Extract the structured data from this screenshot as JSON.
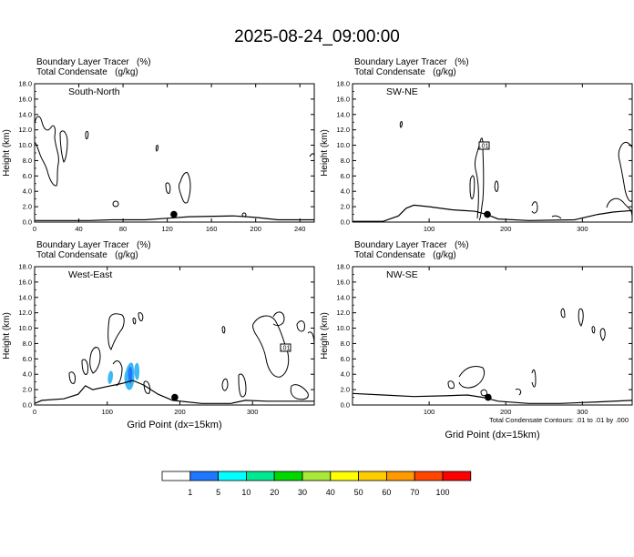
{
  "title": "2025-08-24_09:00:00",
  "field1_label": "Boundary Layer Tracer   (%)",
  "field2_label": "Total Condensate   (g/kg)",
  "ylabel": "Height (km)",
  "xlabel": "Grid Point (dx=15km)",
  "footnote": "Total Condensate Contours: .01 to .01 by .000",
  "contour_label": ".01",
  "colors": {
    "tracer_light": "#3db8f5",
    "tracer_dark": "#1e78ff",
    "terrain": "#000000"
  },
  "chart_data": [
    {
      "type": "heatmap",
      "panel": "South-North",
      "ylim": [
        0,
        18
      ],
      "xlim": [
        0,
        253
      ],
      "yticks": [
        "0.0",
        "2.0",
        "4.0",
        "6.0",
        "8.0",
        "10.0",
        "12.0",
        "14.0",
        "16.0",
        "18.0"
      ],
      "xticks": [
        "0",
        "40",
        "80",
        "120",
        "160",
        "200",
        "240"
      ],
      "xtick_values": [
        0,
        40,
        80,
        120,
        160,
        200,
        240
      ],
      "terrain": [
        [
          0,
          0.2
        ],
        [
          50,
          0.2
        ],
        [
          70,
          0.3
        ],
        [
          100,
          0.3
        ],
        [
          120,
          0.5
        ],
        [
          140,
          0.7
        ],
        [
          180,
          0.8
        ],
        [
          200,
          0.6
        ],
        [
          220,
          0.3
        ],
        [
          253,
          0.3
        ]
      ],
      "marker": [
        126,
        1.0
      ]
    },
    {
      "type": "heatmap",
      "panel": "SW-NE",
      "ylim": [
        0,
        18
      ],
      "xlim": [
        0,
        365
      ],
      "yticks": [
        "0.0",
        "2.0",
        "4.0",
        "6.0",
        "8.0",
        "10.0",
        "12.0",
        "14.0",
        "16.0",
        "18.0"
      ],
      "xticks": [
        "100",
        "200",
        "300"
      ],
      "xtick_values": [
        100,
        200,
        300
      ],
      "terrain": [
        [
          0,
          0.1
        ],
        [
          40,
          0.1
        ],
        [
          60,
          0.8
        ],
        [
          70,
          1.8
        ],
        [
          80,
          2.2
        ],
        [
          100,
          2.0
        ],
        [
          130,
          1.6
        ],
        [
          160,
          1.4
        ],
        [
          175,
          1.0
        ],
        [
          190,
          0.4
        ],
        [
          230,
          0.2
        ],
        [
          290,
          0.3
        ],
        [
          320,
          1.0
        ],
        [
          340,
          1.3
        ],
        [
          365,
          1.5
        ]
      ],
      "marker": [
        176,
        1.0
      ]
    },
    {
      "type": "heatmap",
      "panel": "West-East",
      "ylim": [
        0,
        18
      ],
      "xlim": [
        0,
        385
      ],
      "yticks": [
        "0.0",
        "2.0",
        "4.0",
        "6.0",
        "8.0",
        "10.0",
        "12.0",
        "14.0",
        "16.0",
        "18.0"
      ],
      "xticks": [
        "0",
        "100",
        "200",
        "300"
      ],
      "xtick_values": [
        0,
        100,
        200,
        300
      ],
      "terrain": [
        [
          0,
          0.2
        ],
        [
          10,
          0.6
        ],
        [
          40,
          0.8
        ],
        [
          60,
          1.4
        ],
        [
          70,
          2.5
        ],
        [
          80,
          2.0
        ],
        [
          100,
          2.4
        ],
        [
          120,
          2.8
        ],
        [
          135,
          3.2
        ],
        [
          150,
          2.6
        ],
        [
          170,
          1.4
        ],
        [
          190,
          0.6
        ],
        [
          230,
          0.2
        ],
        [
          270,
          0.2
        ],
        [
          290,
          0.6
        ],
        [
          320,
          0.5
        ],
        [
          385,
          0.5
        ]
      ],
      "marker": [
        193,
        1.0
      ],
      "tracer_cells": [
        [
          104,
          4.0
        ],
        [
          120,
          4.5
        ],
        [
          126,
          4.9
        ],
        [
          132,
          5.4
        ],
        [
          138,
          5.0
        ]
      ]
    },
    {
      "type": "heatmap",
      "panel": "NW-SE",
      "ylim": [
        0,
        18
      ],
      "xlim": [
        0,
        365
      ],
      "yticks": [
        "0.0",
        "2.0",
        "4.0",
        "6.0",
        "8.0",
        "10.0",
        "12.0",
        "14.0",
        "16.0",
        "18.0"
      ],
      "xticks": [
        "100",
        "200",
        "300"
      ],
      "xtick_values": [
        100,
        200,
        300
      ],
      "terrain": [
        [
          0,
          1.5
        ],
        [
          40,
          1.3
        ],
        [
          80,
          1.1
        ],
        [
          120,
          1.2
        ],
        [
          150,
          1.3
        ],
        [
          170,
          1.0
        ],
        [
          190,
          0.5
        ],
        [
          230,
          0.2
        ],
        [
          270,
          0.2
        ],
        [
          320,
          0.4
        ],
        [
          365,
          0.6
        ]
      ],
      "marker": [
        177,
        1.0
      ]
    }
  ],
  "colorbar": {
    "labels": [
      "1",
      "5",
      "10",
      "20",
      "30",
      "40",
      "50",
      "60",
      "70",
      "100"
    ],
    "colors": [
      "#ffffff",
      "#1e78ff",
      "#00ffff",
      "#00e890",
      "#00d800",
      "#a8e838",
      "#ffff00",
      "#ffcc00",
      "#ff9900",
      "#ff4500",
      "#ff0000"
    ]
  }
}
